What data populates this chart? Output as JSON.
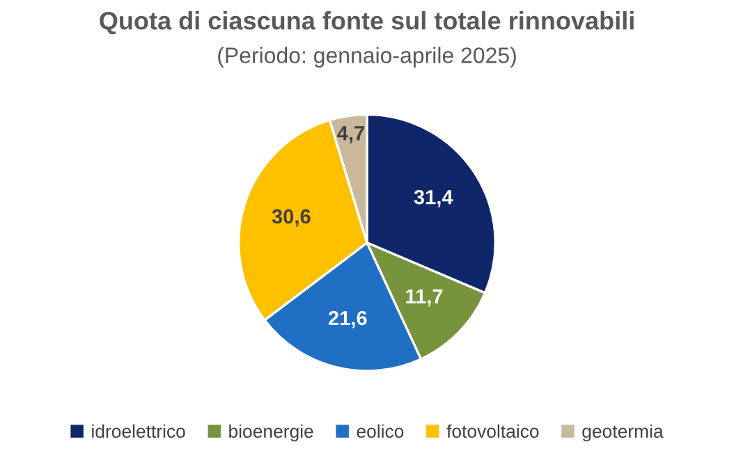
{
  "chart_data": {
    "type": "pie",
    "title": "Quota di ciascuna fonte sul totale rinnovabili",
    "subtitle": "(Periodo: gennaio-aprile 2025)",
    "categories": [
      "idroelettrico",
      "bioenergie",
      "eolico",
      "fotovoltaico",
      "geotermia"
    ],
    "values": [
      31.4,
      11.7,
      21.6,
      30.6,
      4.7
    ],
    "value_labels": [
      "31,4",
      "11,7",
      "21,6",
      "30,6",
      "4,7"
    ],
    "colors": [
      "#0f2769",
      "#77933c",
      "#1f6fc5",
      "#ffc000",
      "#c9b99a"
    ],
    "legend": "bottom"
  }
}
